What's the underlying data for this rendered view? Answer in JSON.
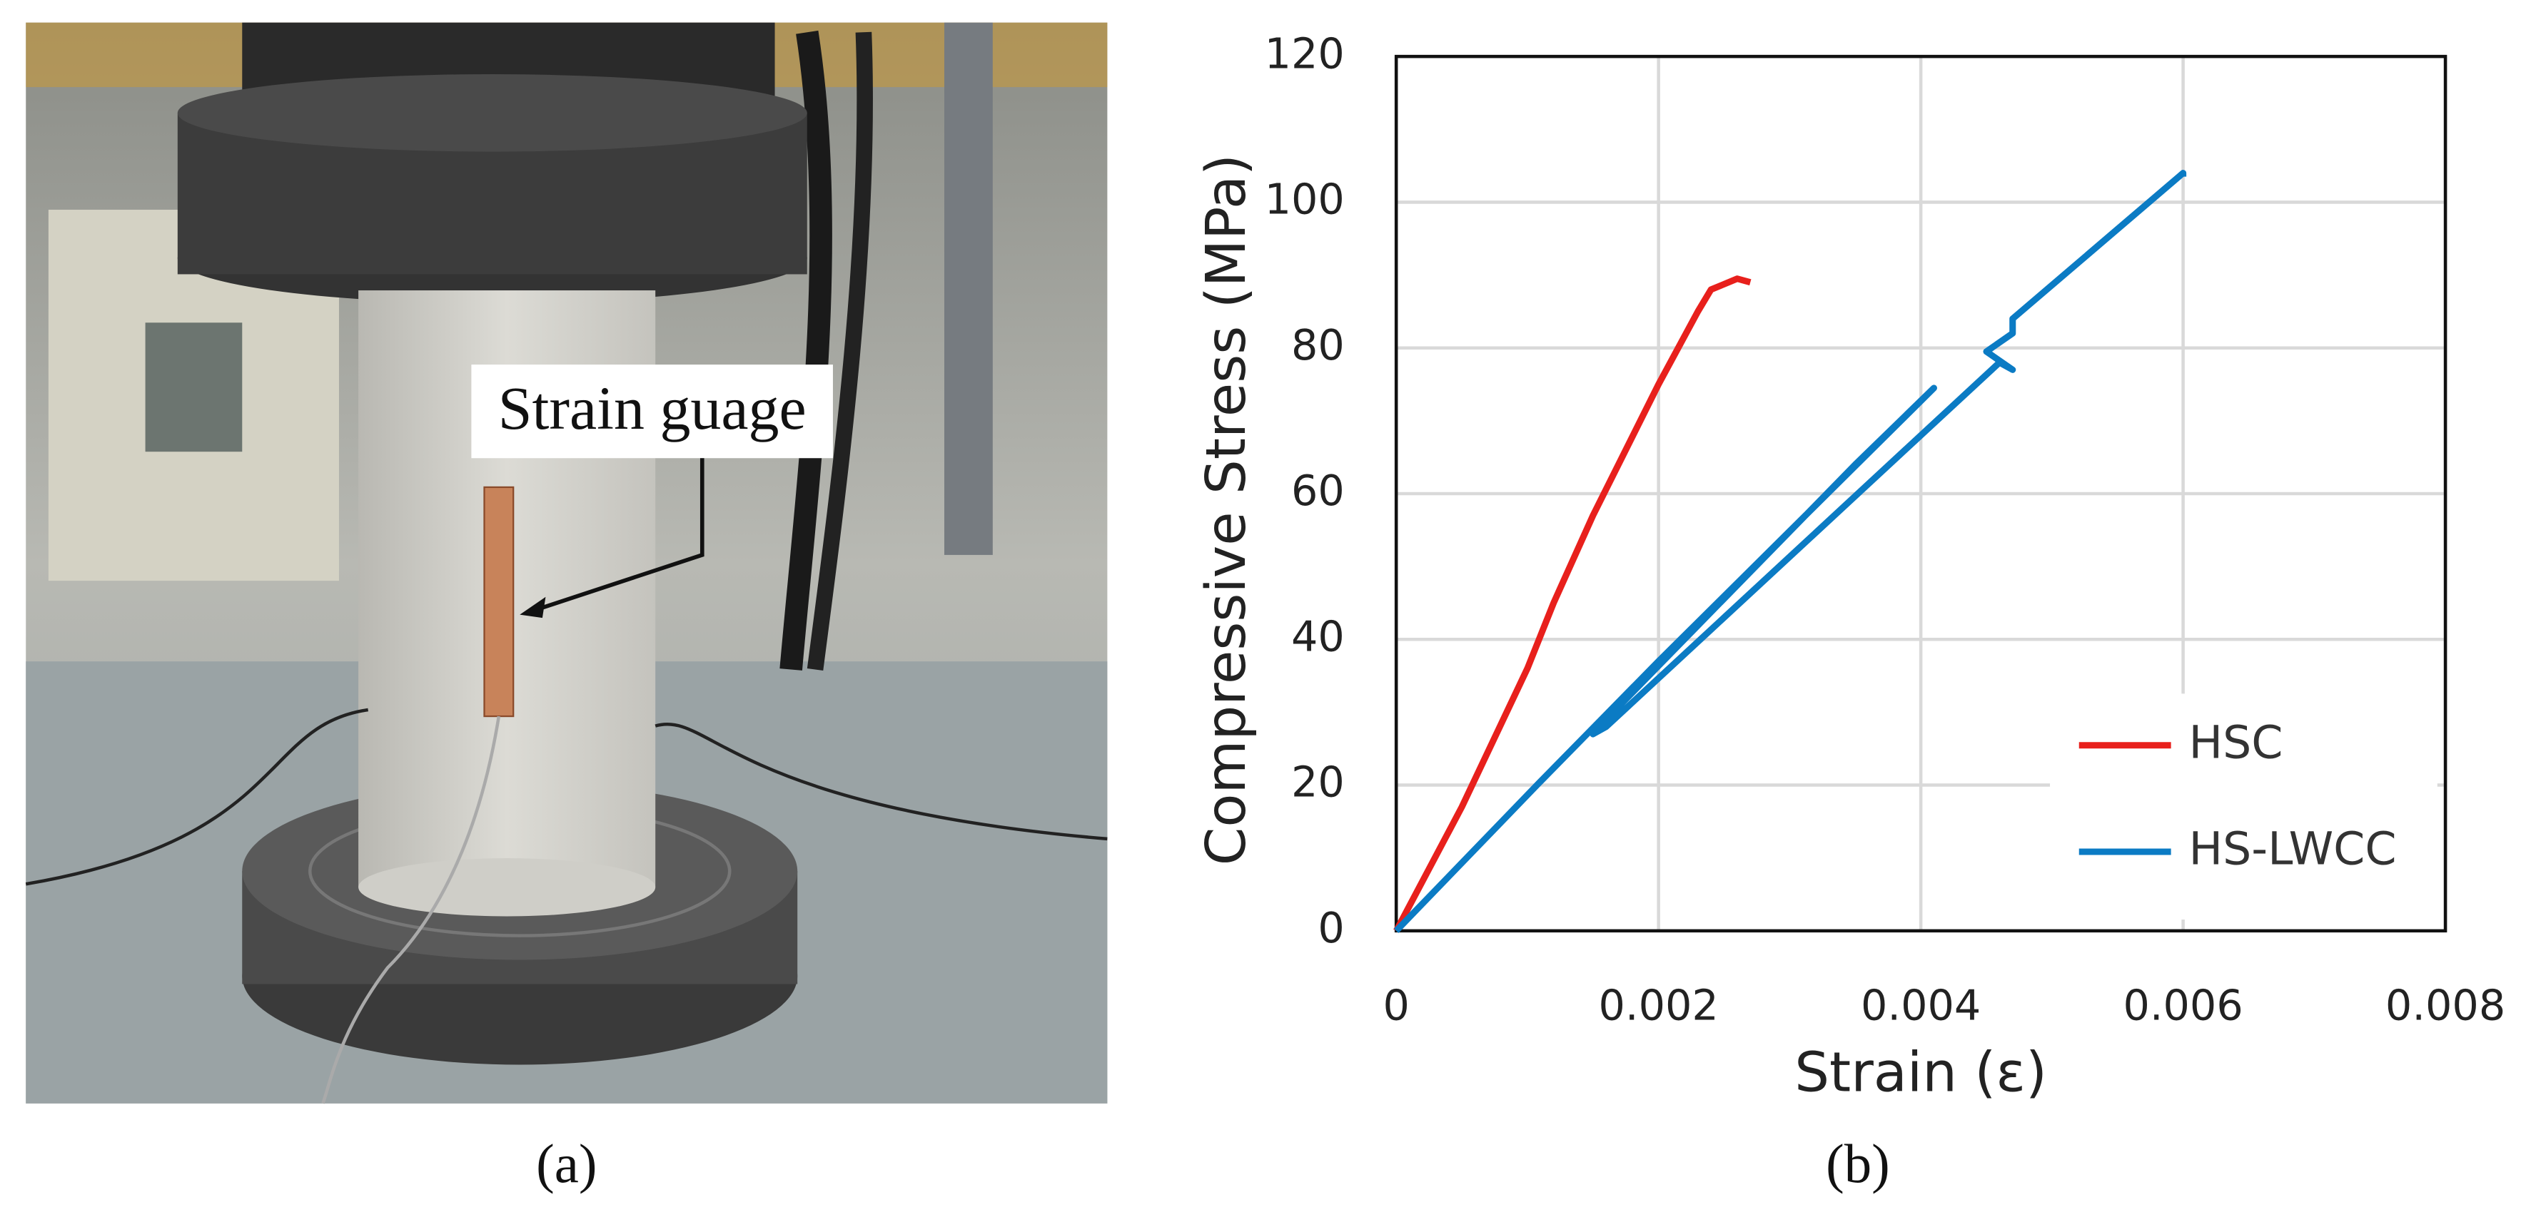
{
  "photo_label": "Strain guage",
  "caption_a": "(a)",
  "caption_b": "(b)",
  "chart_data": {
    "type": "line",
    "xlabel": "Strain (ε)",
    "ylabel": "Compressive Stress (MPa)",
    "xlim": [
      0,
      0.008
    ],
    "xticks": [
      0,
      0.002,
      0.004,
      0.006,
      0.008
    ],
    "ylim": [
      0,
      120
    ],
    "yticks": [
      0,
      20,
      40,
      60,
      80,
      100,
      120
    ],
    "grid": true,
    "legend": "lower right",
    "series": [
      {
        "name": "HSC",
        "color": "#e8201c",
        "x": [
          0,
          0.0005,
          0.001,
          0.0012,
          0.00125,
          0.0015,
          0.002,
          0.0023,
          0.0024,
          0.0026,
          0.0027
        ],
        "values": [
          0,
          17,
          36,
          45,
          47,
          57,
          75,
          85,
          88,
          89.5,
          89
        ]
      },
      {
        "name": "HS-LWCC",
        "color": "#0b7bc4",
        "x": [
          0,
          0.0011,
          0.002,
          0.0041,
          0.0035,
          0.0016,
          0.0015,
          0.0016,
          0.0046,
          0.0047,
          0.0045,
          0.0047,
          0.0047,
          0.006,
          0.006
        ],
        "values": [
          0,
          20.5,
          37,
          74.5,
          64,
          29,
          27,
          28,
          78,
          77,
          79.5,
          82,
          84,
          104,
          103.5
        ]
      }
    ]
  }
}
